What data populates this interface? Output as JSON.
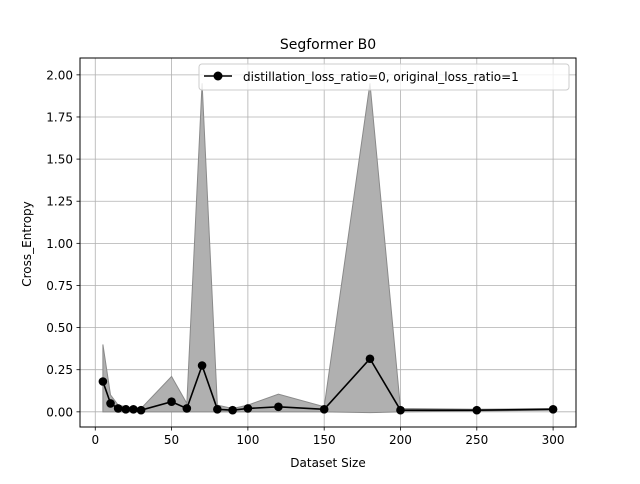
{
  "chart_data": {
    "type": "line",
    "title": "Segformer B0",
    "xlabel": "Dataset Size",
    "ylabel": "Cross_Entropy",
    "xlim": [
      -10,
      315
    ],
    "ylim": [
      -0.09,
      2.1
    ],
    "xticks": [
      0,
      50,
      100,
      150,
      200,
      250,
      300
    ],
    "yticks": [
      0.0,
      0.25,
      0.5,
      0.75,
      1.0,
      1.25,
      1.5,
      1.75,
      2.0
    ],
    "ytick_labels": [
      "0.00",
      "0.25",
      "0.50",
      "0.75",
      "1.00",
      "1.25",
      "1.50",
      "1.75",
      "2.00"
    ],
    "grid": true,
    "legend_position": "top-right",
    "series": [
      {
        "name": "distillation_loss_ratio=0, original_loss_ratio=1",
        "color": "#000000",
        "marker": "circle",
        "x": [
          5,
          10,
          15,
          20,
          25,
          30,
          50,
          60,
          70,
          80,
          90,
          100,
          120,
          150,
          180,
          200,
          250,
          300
        ],
        "y": [
          0.18,
          0.05,
          0.02,
          0.015,
          0.015,
          0.01,
          0.06,
          0.02,
          0.275,
          0.015,
          0.01,
          0.02,
          0.03,
          0.015,
          0.315,
          0.01,
          0.01,
          0.015
        ],
        "band_color": "#b0b0b0",
        "band_upper": [
          0.4,
          0.1,
          0.04,
          0.03,
          0.025,
          0.02,
          0.21,
          0.05,
          1.95,
          0.04,
          0.02,
          0.04,
          0.105,
          0.03,
          1.95,
          0.02,
          0.015,
          0.02
        ],
        "band_lower": [
          0.0,
          0.0,
          0.0,
          0.0,
          0.0,
          0.0,
          0.0,
          0.0,
          0.0,
          0.0,
          0.0,
          0.0,
          0.0,
          0.0,
          -0.005,
          0.0,
          0.005,
          0.01
        ]
      }
    ]
  }
}
